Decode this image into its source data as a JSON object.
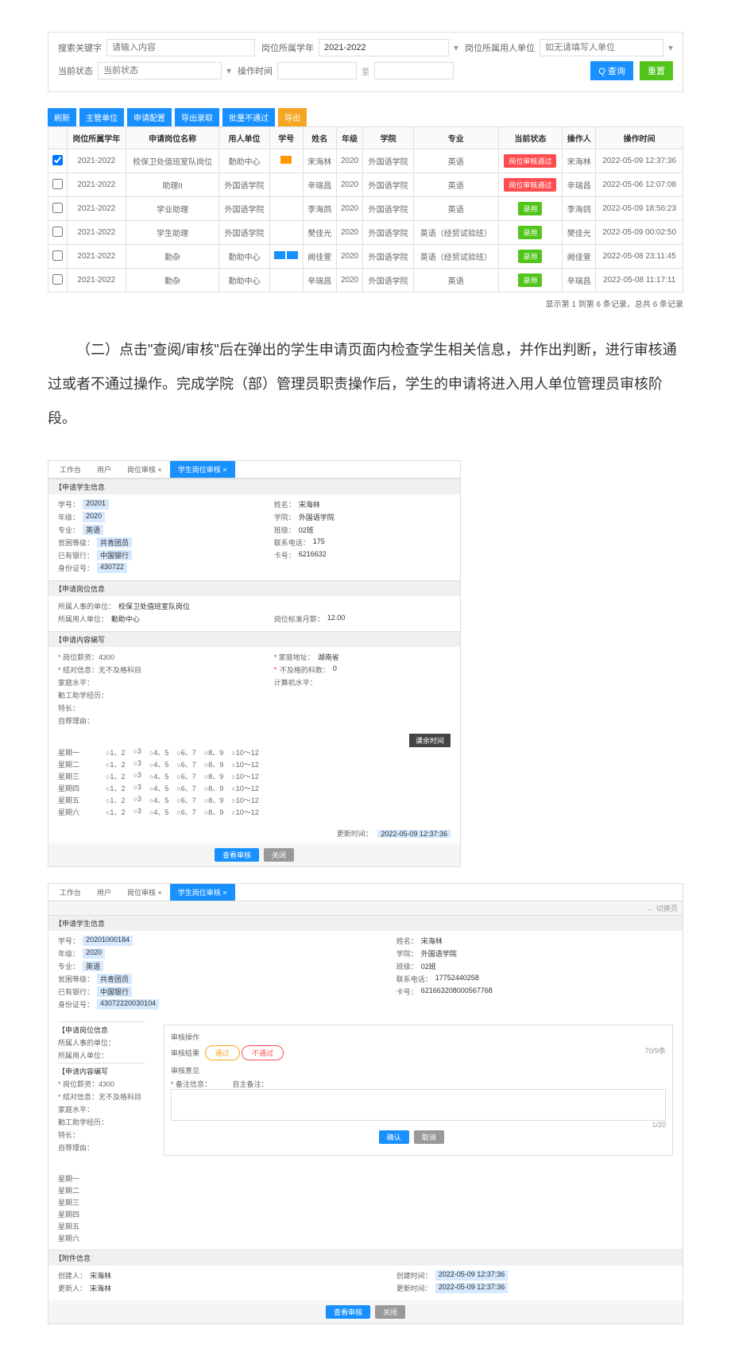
{
  "filters": {
    "keyword_label": "搜索关键字",
    "keyword_placeholder": "请输入内容",
    "year_label": "岗位所属学年",
    "year_value": "2021-2022",
    "employer_label": "岗位所属用人单位",
    "employer_placeholder": "如无请填写人单位",
    "status_label": "当前状态",
    "status_placeholder": "当前状态",
    "time_label": "操作时间",
    "time_to": "至",
    "search_btn": "查询",
    "reset_btn": "重置"
  },
  "actions": [
    {
      "label": "刷新",
      "bg": "#1890ff"
    },
    {
      "label": "主管单位",
      "bg": "#1890ff"
    },
    {
      "label": "申请配置",
      "bg": "#1890ff"
    },
    {
      "label": "导出录取",
      "bg": "#1890ff"
    },
    {
      "label": "批量不通过",
      "bg": "#1890ff"
    },
    {
      "label": "导出",
      "bg": "#f5a623"
    }
  ],
  "table": {
    "columns": [
      "",
      "岗位所属学年",
      "申请岗位名称",
      "用人单位",
      "学号",
      "姓名",
      "年级",
      "学院",
      "专业",
      "当前状态",
      "操作人",
      "操作时间"
    ],
    "rows": [
      {
        "check": true,
        "year": "2021-2022",
        "post": "校保卫处值班室队岗位",
        "unit": "勤助中心",
        "stu_flag": "#ff9800",
        "name": "宋海林",
        "grade": "2020",
        "college": "外国语学院",
        "major": "英语",
        "status": "岗位审核通过",
        "status_bg": "#ff4d4f",
        "operator": "宋海林",
        "time": "2022-05-09 12:37:36"
      },
      {
        "check": false,
        "year": "2021-2022",
        "post": "助理II",
        "unit": "外国语学院",
        "stu_flag": "",
        "name": "辛瑞昌",
        "grade": "2020",
        "college": "外国语学院",
        "major": "英语",
        "status": "岗位审核通过",
        "status_bg": "#ff4d4f",
        "operator": "辛瑞昌",
        "time": "2022-05-06 12:07:08"
      },
      {
        "check": false,
        "year": "2021-2022",
        "post": "学业助理",
        "unit": "外国语学院",
        "stu_flag": "",
        "name": "李海鸽",
        "grade": "2020",
        "college": "外国语学院",
        "major": "英语",
        "status": "录用",
        "status_bg": "#52c41a",
        "operator": "李海鸽",
        "time": "2022-05-09 18:56:23"
      },
      {
        "check": false,
        "year": "2021-2022",
        "post": "学生助理",
        "unit": "外国语学院",
        "stu_flag": "",
        "name": "樊佳光",
        "grade": "2020",
        "college": "外国语学院",
        "major": "英语（经贸试验班）",
        "status": "录用",
        "status_bg": "#52c41a",
        "operator": "樊佳光",
        "time": "2022-05-09 00:02:50"
      },
      {
        "check": false,
        "year": "2021-2022",
        "post": "勤杂",
        "unit": "勤助中心",
        "stu_flag_double": [
          "#1890ff",
          "#1890ff"
        ],
        "name": "阙佳萱",
        "grade": "2020",
        "college": "外国语学院",
        "major": "英语（经贸试验班）",
        "status": "录用",
        "status_bg": "#52c41a",
        "operator": "阙佳萱",
        "time": "2022-05-08 23:11:45"
      },
      {
        "check": false,
        "year": "2021-2022",
        "post": "勤杂",
        "unit": "勤助中心",
        "stu_flag": "",
        "name": "辛瑞昌",
        "grade": "2020",
        "college": "外国语学院",
        "major": "英语",
        "status": "录用",
        "status_bg": "#52c41a",
        "operator": "辛瑞昌",
        "time": "2022-05-08 11:17:11"
      }
    ],
    "footer": "显示第 1 到第 6 条记录，总共 6 条记录"
  },
  "paragraph": "（二）点击\"查阅/审核\"后在弹出的学生申请页面内检查学生相关信息，并作出判断，进行审核通过或者不通过操作。完成学院（部）管理员职责操作后，学生的申请将进入用人单位管理员审核阶段。",
  "panel1": {
    "tabs": [
      "工作台",
      "用户",
      "岗位审核 ×",
      "学生岗位审核 ×"
    ],
    "active_tab": 3,
    "sec1_title": "【申请学生信息",
    "student": {
      "stuno_label": "学号：",
      "stuno": "20201",
      "name_label": "姓名：",
      "name": "宋海林",
      "grade_label": "年级：",
      "grade": "2020",
      "college_label": "学院：",
      "college": "外国语学院",
      "major_label": "专业：",
      "major": "英语",
      "class_label": "班级：",
      "class_val": "02班",
      "poor_label": "贫困等级：",
      "poor": "共青团员",
      "phone_label": "联系电话：",
      "phone": "175",
      "bank_card_label": "已有银行：",
      "bank_card": "中国银行",
      "card_label": "卡号：",
      "card": "6216632",
      "idcard_label": "身份证号：",
      "idcard": "430722"
    },
    "sec2_title": "【申请岗位信息",
    "post_info": {
      "belong_label": "所属人事的单位：",
      "belong": "校保卫处值班室队岗位",
      "employer_label": "所属用人单位：",
      "employer": "勤助中心",
      "month_pay_label": "岗位标准月薪：",
      "month_pay": "12.00"
    },
    "sec3_title": "【申请内容编写",
    "apply": {
      "salary_label": "* 岗位薪资：4300",
      "salary_right_label": "* 家庭地址：",
      "salary_right": "湖南省",
      "subject_label": "* 结对信息：无不及格科目",
      "subject_right_label": "不及格的科数：",
      "subject_right": "0",
      "family_label": "家庭水平：",
      "cpu_label": "计算机水平：",
      "work_label": "勤工助学经历：",
      "other_label": "特长：",
      "self_label": "自荐理由："
    },
    "sched_title": "课余时间",
    "days": [
      "星期一",
      "星期二",
      "星期三",
      "星期四",
      "星期五",
      "星期六"
    ],
    "slots": [
      "○1、2",
      "○3",
      "○4、5",
      "○6、7",
      "○8、9",
      "○10～12"
    ],
    "update_label": "更新时间：",
    "update_time": "2022-05-09 12:37:36",
    "btn_review": "查看审核",
    "btn_close": "关闭"
  },
  "panel2": {
    "top_pager": "← 切换页",
    "tabs": [
      "工作台",
      "用户",
      "岗位审核 ×",
      "学生岗位审核 ×"
    ],
    "sec1_title": "【申请学生信息",
    "student": {
      "stuno_label": "学号：",
      "stuno": "20201000184",
      "name_label": "姓名：",
      "name": "宋海林",
      "grade_label": "年级：",
      "grade": "2020",
      "college_label": "学院：",
      "college": "外国语学院",
      "major_label": "专业：",
      "major": "英语",
      "class_label": "班级：",
      "class_val": "02班",
      "poor_label": "贫困等级：",
      "poor": "共青团员",
      "phone_label": "联系电话：",
      "phone": "17752440258",
      "bank_card_label": "已有银行：",
      "bank_card": "中国银行",
      "card_label": "卡号：",
      "card": "621663208000567768",
      "idcard_label": "身份证号：",
      "idcard": "43072220030104"
    },
    "modal_title": "审核操作",
    "result_label": "审核结果",
    "pill_pass": "通过",
    "pill_fail": "不通过",
    "opinion_label": "审核意见",
    "sec2_title": "【申请岗位信息",
    "sec3_title": "【申请内容编写",
    "remark_label": "* 备注信息：",
    "remark_right_label": "自主备注：",
    "count_right": "70/9条",
    "count2": "1/20",
    "btn_confirm": "确认",
    "btn_cancel": "取消",
    "days": [
      "星期一",
      "星期二",
      "星期三",
      "星期四",
      "星期五",
      "星期六"
    ],
    "attach_title": "【附件信息",
    "creator_label": "创建人：",
    "creator": "宋海林",
    "create_time_label": "创建时间：",
    "create_time": "2022-05-09 12:37:36",
    "updater_label": "更新人：",
    "updater": "宋海林",
    "update_time_label": "更新时间：",
    "update_time": "2022-05-09 12:37:36",
    "btn_review": "查看审核",
    "btn_close": "关闭"
  },
  "colors": {
    "blue": "#1890ff",
    "green": "#52c41a",
    "red": "#ff4d4f",
    "orange": "#f5a623"
  }
}
